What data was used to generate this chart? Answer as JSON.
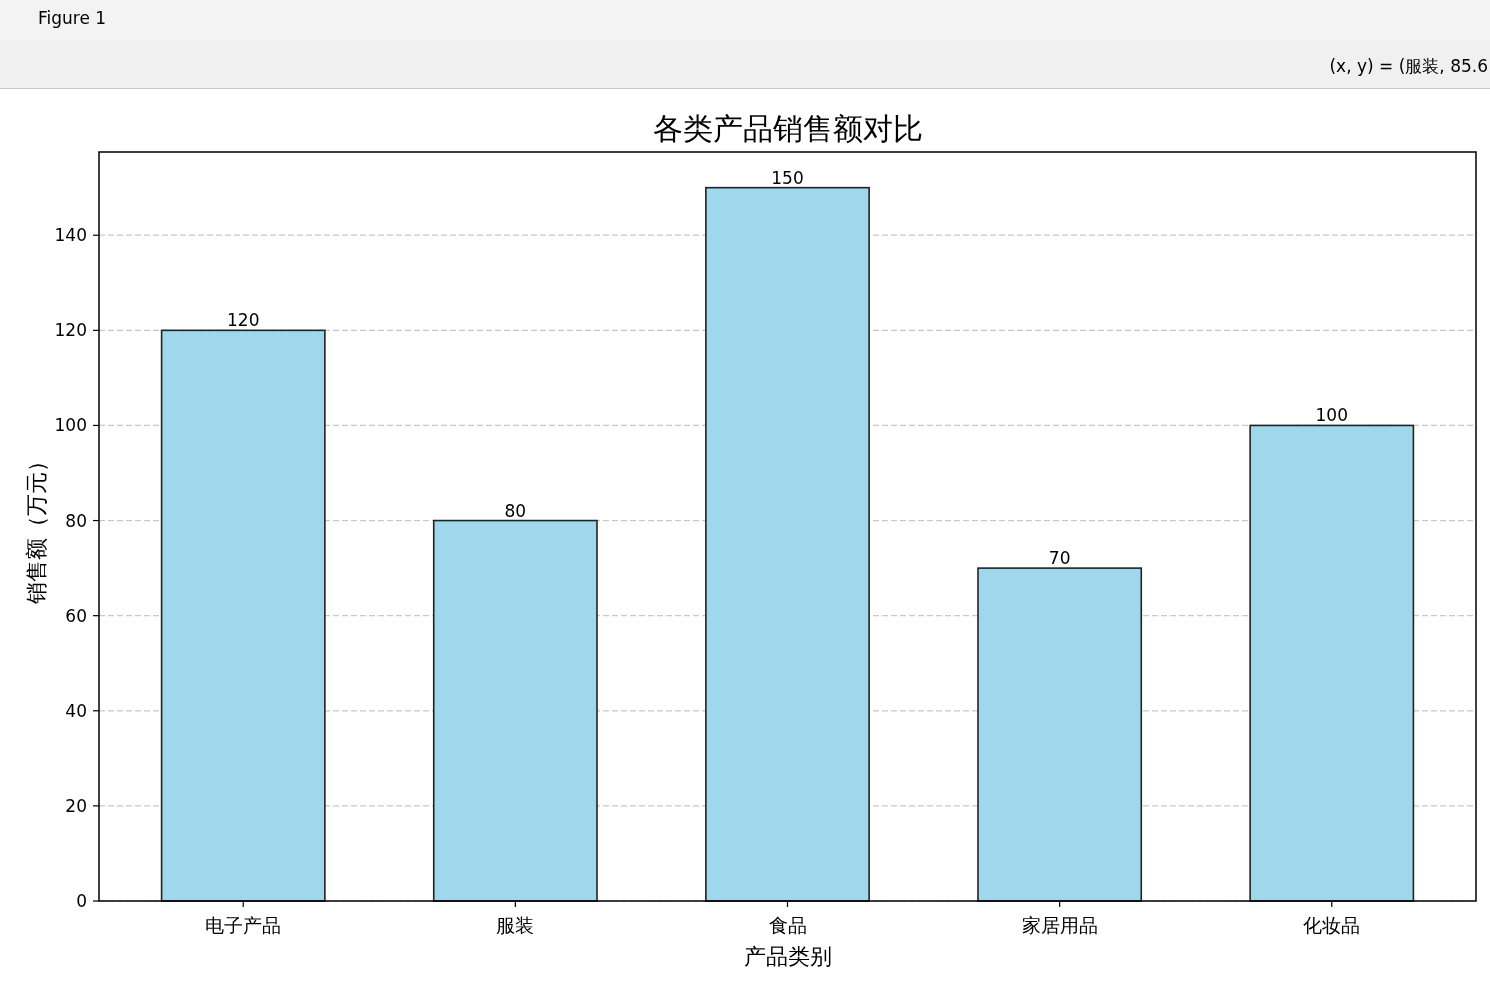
{
  "chart_data": {
    "type": "bar",
    "title": "各类产品销售额对比",
    "xlabel": "产品类别",
    "ylabel": "销售额（万元）",
    "categories": [
      "电子产品",
      "服装",
      "食品",
      "家居用品",
      "化妆品"
    ],
    "values": [
      120,
      80,
      150,
      70,
      100
    ],
    "color": "#9fd7ec",
    "ylim": [
      0,
      157.5
    ],
    "yticks": [
      0,
      20,
      40,
      60,
      80,
      100,
      120,
      140
    ],
    "grid": "y",
    "data_labels": true,
    "annotations": [
      "Figure 1",
      "(x, y) = (服装, 85.6"
    ]
  }
}
